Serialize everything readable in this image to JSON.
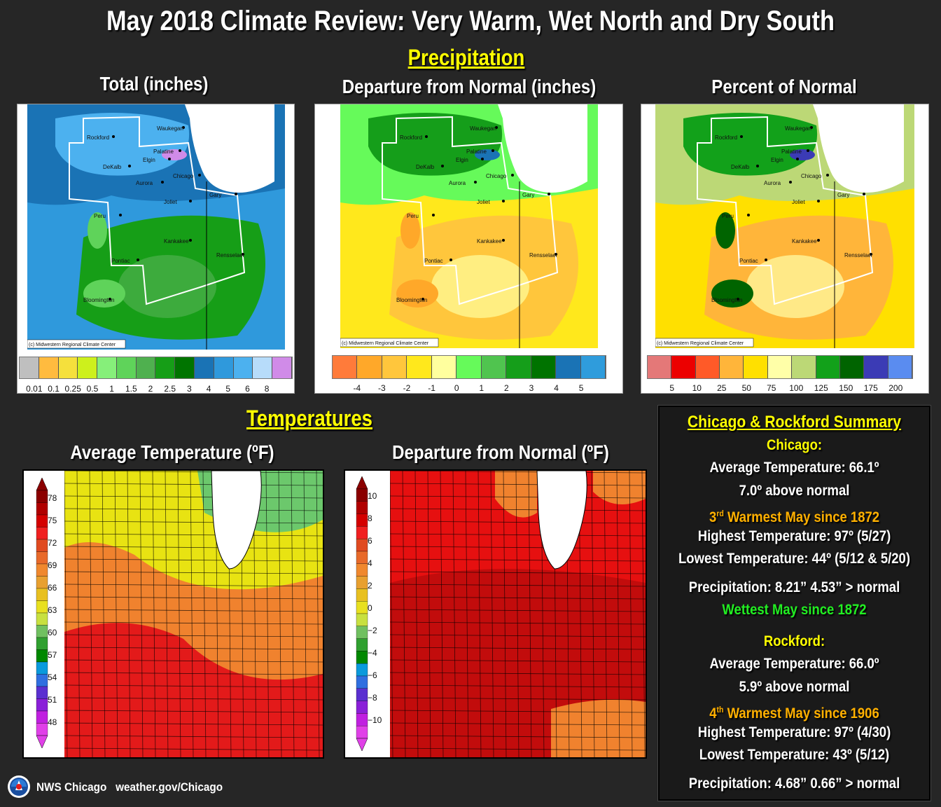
{
  "title": "May 2018 Climate Review: Very Warm, Wet North and Dry South",
  "precip": {
    "heading": "Precipitation",
    "panels": [
      {
        "title": "Total (inches)",
        "credit": "(c) Midwestern Regional Climate Center",
        "legend_colors": [
          "#bfbfbf",
          "#ffbb3f",
          "#f5e03c",
          "#cdf01c",
          "#86ef7a",
          "#5fd35a",
          "#4fb04f",
          "#169e17",
          "#007400",
          "#1a73b5",
          "#2f99dc",
          "#4cb1ef",
          "#b7dcfa",
          "#d08be8"
        ],
        "ticks": [
          "0.01",
          "0.1",
          "0.25",
          "0.5",
          "1",
          "1.5",
          "2",
          "2.5",
          "3",
          "4",
          "5",
          "6",
          "8"
        ]
      },
      {
        "title": "Departure from Normal (inches)",
        "credit": "(c) Midwestern Regional Climate Center",
        "legend_colors": [
          "#ff7b3a",
          "#ffa829",
          "#ffc63c",
          "#ffe81c",
          "#ffff9e",
          "#66fa5a",
          "#50c44f",
          "#159e1a",
          "#007300",
          "#1a73b5",
          "#2f9cdc"
        ],
        "ticks": [
          "-4",
          "-3",
          "-2",
          "-1",
          "0",
          "1",
          "2",
          "3",
          "4",
          "5"
        ]
      },
      {
        "title": "Percent of Normal",
        "credit": "(c) Midwestern Regional Climate Center",
        "legend_colors": [
          "#e47878",
          "#ec0000",
          "#ff5a28",
          "#ffb53a",
          "#ffe000",
          "#ffffa8",
          "#bcd876",
          "#12a11a",
          "#006400",
          "#3b3bb5",
          "#5a8cf0"
        ],
        "ticks": [
          "5",
          "10",
          "25",
          "50",
          "75",
          "100",
          "125",
          "150",
          "175",
          "200"
        ]
      }
    ],
    "cities": [
      "Rockford",
      "Waukegan",
      "Palatine",
      "Elgin",
      "DeKalb",
      "Chicago",
      "Aurora",
      "Joliet",
      "Gary",
      "Peru",
      "Kankakee",
      "Rensselaer",
      "Pontiac",
      "Bloomington"
    ]
  },
  "temps": {
    "heading": "Temperatures",
    "avg": {
      "title": "Average Temperature (ºF)",
      "ticks": [
        "78",
        "75",
        "72",
        "69",
        "66",
        "63",
        "60",
        "57",
        "54",
        "51",
        "48"
      ]
    },
    "dep": {
      "title": "Departure from Normal (ºF)",
      "ticks": [
        "10",
        "8",
        "6",
        "4",
        "2",
        "0",
        "−2",
        "−4",
        "−6",
        "−8",
        "−10"
      ]
    }
  },
  "summary": {
    "title": "Chicago & Rockford Summary",
    "chicago": {
      "label": "Chicago:",
      "avg": "Average Temperature:  66.1º",
      "dep": "7.0º above normal",
      "rank_sup": "rd",
      "rank_num": "3",
      "rank": " Warmest May since 1872",
      "high": "Highest Temperature:  97º (5/27)",
      "low": "Lowest Temperature:  44º (5/12 & 5/20)",
      "precip": "Precipitation:  8.21”  4.53” > normal",
      "precip_rank": "Wettest May since 1872"
    },
    "rockford": {
      "label": "Rockford:",
      "avg": "Average Temperature:  66.0º",
      "dep": "5.9º above normal",
      "rank_num": "4",
      "rank_sup": "th",
      "rank": " Warmest May since 1906",
      "high": "Highest Temperature:  97º (4/30)",
      "low": "Lowest Temperature:  43º (5/12)",
      "precip": "Precipitation:  4.68”  0.66” > normal"
    }
  },
  "footer": {
    "org": "NWS Chicago",
    "url": "weather.gov/Chicago"
  }
}
